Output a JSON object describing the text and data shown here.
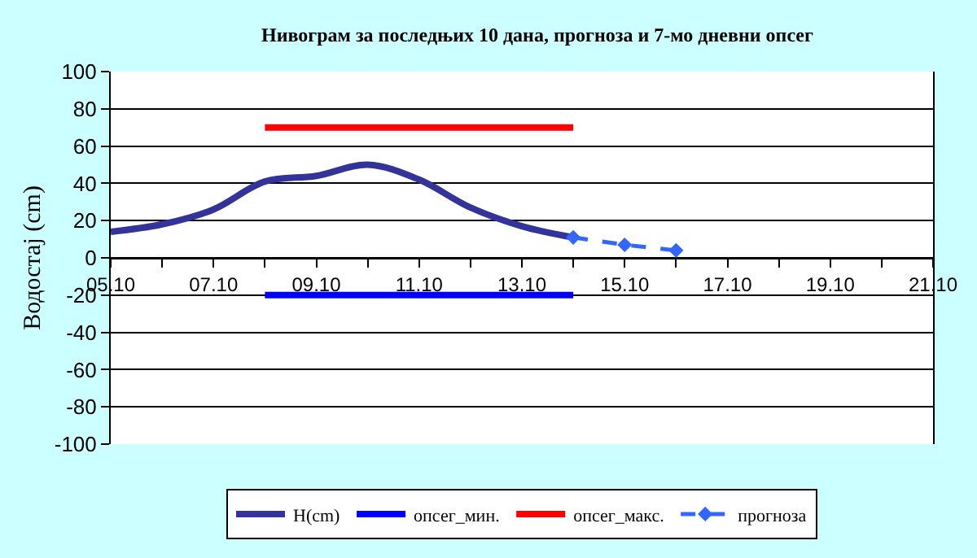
{
  "chart_data": {
    "type": "line",
    "title": "Нивограм за последњих 10 дана, прогноза и 7-мо дневни опсег",
    "ylabel": "Водостај (cm)",
    "x": [
      "--10-05",
      "--10-06",
      "--10-07",
      "--10-08",
      "--10-09",
      "--10-10",
      "--10-11",
      "--10-12",
      "--10-13",
      "--10-14"
    ],
    "series": [
      {
        "name": "H(cm)",
        "color": "#333399",
        "values": [
          14,
          18,
          26,
          41,
          44,
          50,
          42,
          27,
          17,
          11
        ]
      },
      {
        "name": "опсег_мин.",
        "color": "#0000ff",
        "x": [
          "--10-08",
          "--10-14"
        ],
        "values": [
          -20,
          -20
        ]
      },
      {
        "name": "опсег_макс.",
        "color": "#ff0000",
        "x": [
          "--10-08",
          "--10-14"
        ],
        "values": [
          70,
          70
        ]
      },
      {
        "name": "прогноза",
        "color": "#3366ff",
        "x": [
          "--10-14",
          "--10-15",
          "--10-16"
        ],
        "values": [
          11,
          7,
          4
        ],
        "marker": "diamond",
        "line_style": "dashed"
      }
    ],
    "xlim": [
      "--10-05",
      "--10-21"
    ],
    "xticks": [
      {
        "value": "--10-05",
        "label": "05.10"
      },
      {
        "value": "--10-06",
        "label": null
      },
      {
        "value": "--10-07",
        "label": "07.10"
      },
      {
        "value": "--10-08",
        "label": null
      },
      {
        "value": "--10-09",
        "label": "09.10"
      },
      {
        "value": "--10-10",
        "label": null
      },
      {
        "value": "--10-11",
        "label": "11.10"
      },
      {
        "value": "--10-12",
        "label": null
      },
      {
        "value": "--10-13",
        "label": "13.10"
      },
      {
        "value": "--10-14",
        "label": null
      },
      {
        "value": "--10-15",
        "label": "15.10"
      },
      {
        "value": "--10-16",
        "label": null
      },
      {
        "value": "--10-17",
        "label": "17.10"
      },
      {
        "value": "--10-18",
        "label": null
      },
      {
        "value": "--10-19",
        "label": "19.10"
      },
      {
        "value": "--10-20",
        "label": null
      },
      {
        "value": "--10-21",
        "label": "21.10"
      }
    ],
    "ylim": [
      -100,
      100
    ],
    "yticks": [
      -100,
      -80,
      -60,
      -40,
      -20,
      0,
      20,
      40,
      60,
      80,
      100
    ],
    "grid": "y",
    "legend": "bottom"
  }
}
